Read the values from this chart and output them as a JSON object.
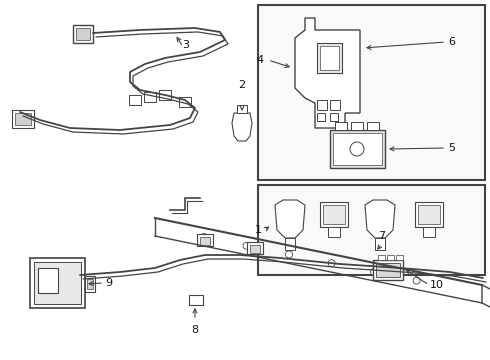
{
  "bg_color": "#ffffff",
  "line_color": "#444444",
  "fig_width": 4.9,
  "fig_height": 3.6,
  "dpi": 100
}
